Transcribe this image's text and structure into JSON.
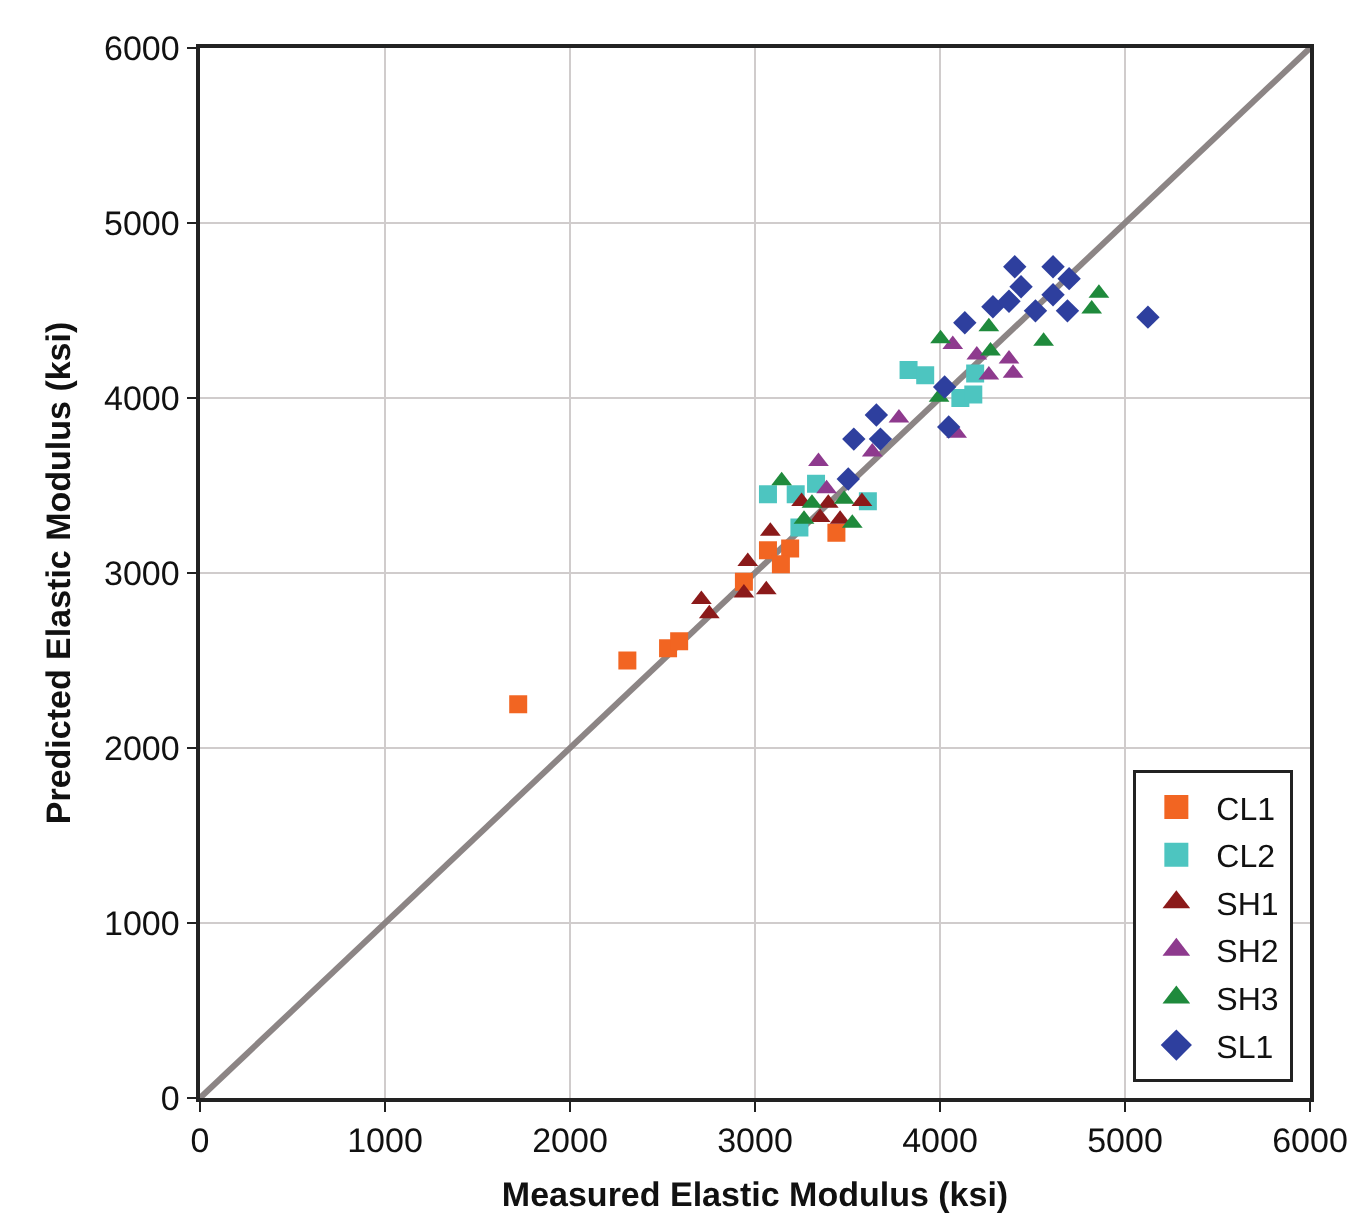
{
  "chart_data": {
    "type": "scatter",
    "xlabel": "Measured Elastic Modulus (ksi)",
    "ylabel": "Predicted Elastic Modulus (ksi)",
    "xlim": [
      0,
      6000
    ],
    "ylim": [
      0,
      6000
    ],
    "xticks": [
      0,
      1000,
      2000,
      3000,
      4000,
      5000,
      6000
    ],
    "yticks": [
      0,
      1000,
      2000,
      3000,
      4000,
      5000,
      6000
    ],
    "grid": true,
    "legend": "bottom right",
    "series": [
      {
        "name": "CL1",
        "color": "#f26522",
        "marker": "square",
        "x": [
          1720,
          2310,
          2530,
          2590,
          2940,
          3070,
          3190,
          3140,
          3440
        ],
        "values": [
          2250,
          2500,
          2570,
          2610,
          2950,
          3130,
          3140,
          3050,
          3230
        ]
      },
      {
        "name": "CL2",
        "color": "#4dc5c0",
        "marker": "square",
        "x": [
          3070,
          3220,
          3330,
          3610,
          3240,
          3830,
          3920,
          4110,
          4180,
          4190
        ],
        "values": [
          3450,
          3450,
          3510,
          3410,
          3260,
          4160,
          4130,
          4000,
          4020,
          4140
        ]
      },
      {
        "name": "SH1",
        "color": "#8b1a1a",
        "marker": "triangle",
        "x": [
          2710,
          2753,
          2940,
          2961,
          3061,
          3083,
          3252,
          3352,
          3460,
          3578,
          3396
        ],
        "values": [
          2849,
          2767,
          2886,
          3065,
          2904,
          3239,
          3408,
          3317,
          3307,
          3408,
          3399
        ]
      },
      {
        "name": "SH2",
        "color": "#8e3a8e",
        "marker": "triangle",
        "x": [
          3343,
          3387,
          3634,
          3778,
          4090,
          4069,
          4199,
          4264,
          4373,
          4395
        ],
        "values": [
          3637,
          3481,
          3692,
          3885,
          3798,
          4306,
          4246,
          4132,
          4223,
          4141
        ]
      },
      {
        "name": "SH3",
        "color": "#1f8a3c",
        "marker": "triangle",
        "x": [
          3144,
          3265,
          3308,
          3482,
          3526,
          4003,
          3995,
          4264,
          4273,
          4560,
          4820,
          4859
        ],
        "values": [
          3527,
          3307,
          3399,
          3422,
          3284,
          4338,
          4004,
          4407,
          4269,
          4324,
          4508,
          4599
        ]
      },
      {
        "name": "SL1",
        "color": "#2e3f9e",
        "marker": "diamond",
        "x": [
          3504,
          3534,
          3656,
          3678,
          4025,
          4047,
          4134,
          4286,
          4373,
          4404,
          4438,
          4516,
          4611,
          4611,
          4698,
          4689,
          5124
        ],
        "values": [
          3537,
          3765,
          3903,
          3765,
          4063,
          3834,
          4430,
          4521,
          4553,
          4750,
          4636,
          4498,
          4750,
          4590,
          4682,
          4498,
          4462
        ]
      },
      {
        "type": "line",
        "color": "#8c8585",
        "marker": "none",
        "x": [
          0,
          6000
        ],
        "values": [
          0,
          6000
        ]
      }
    ]
  }
}
